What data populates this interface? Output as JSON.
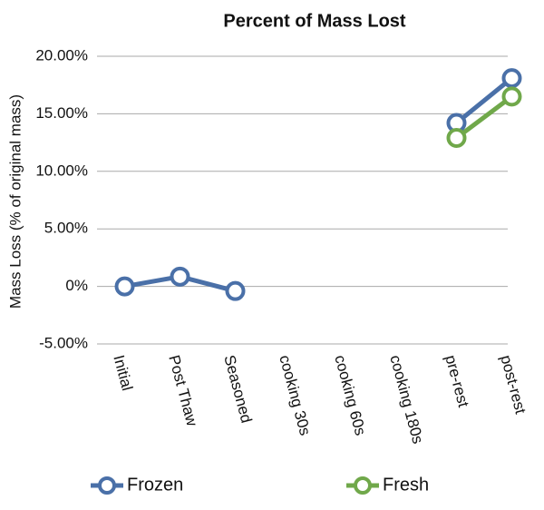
{
  "chart_data": {
    "type": "line",
    "title": "Percent of Mass Lost",
    "y_label": "Mass Loss (% of original mass)",
    "categories": [
      "Initial",
      "Post Thaw",
      "Seasoned",
      "cooking 30s",
      "cooking 60s",
      "cooking 180s",
      "pre-rest",
      "post-rest"
    ],
    "series": [
      {
        "name": "Frozen",
        "color": "#4a70a8",
        "values": [
          0,
          0.85,
          -0.4,
          null,
          null,
          null,
          14.2,
          18.1
        ]
      },
      {
        "name": "Fresh",
        "color": "#70a84a",
        "values": [
          null,
          null,
          null,
          null,
          null,
          null,
          12.9,
          16.5
        ]
      }
    ],
    "ylim": [
      -5,
      20
    ],
    "yticks": [
      {
        "value": -5,
        "label": "-5.00%"
      },
      {
        "value": 0,
        "label": "0%"
      },
      {
        "value": 5,
        "label": "5.00%"
      },
      {
        "value": 10,
        "label": "10.00%"
      },
      {
        "value": 15,
        "label": "15.00%"
      },
      {
        "value": 20,
        "label": "20.00%"
      }
    ],
    "grid": true,
    "legend": "bottom"
  }
}
